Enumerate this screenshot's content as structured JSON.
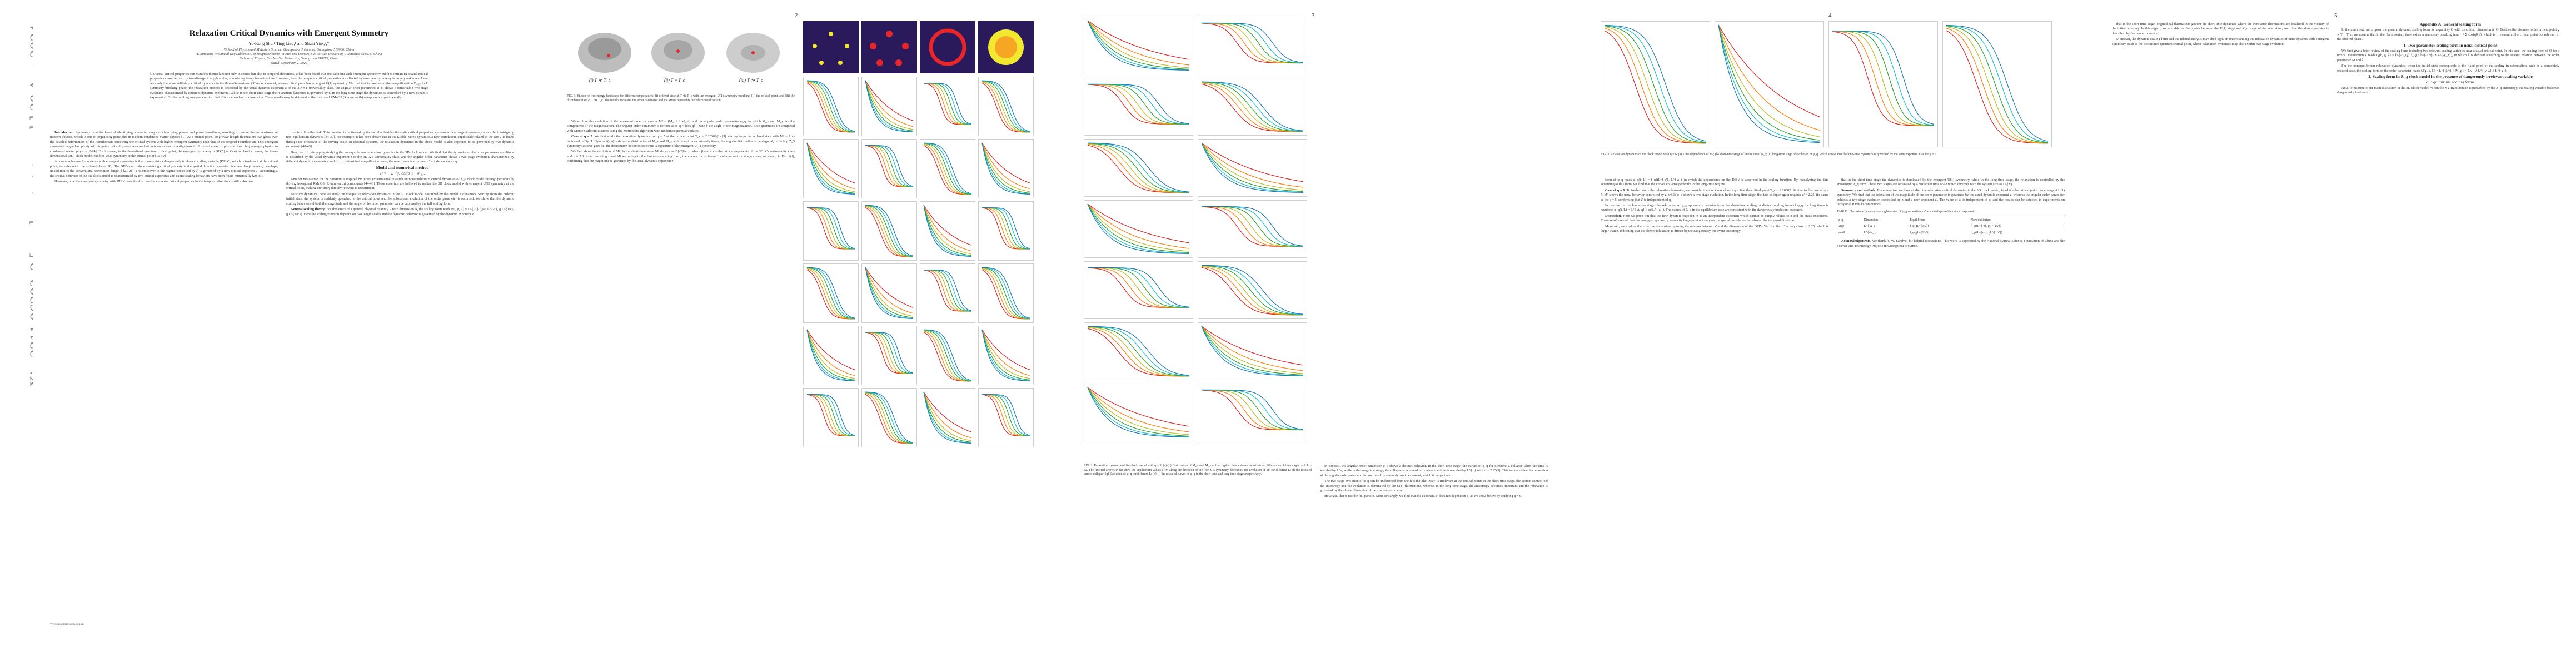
{
  "arxiv_stamp": "arXiv:2311.06203v2  [cond-mat.stat-mech]  30 Aug 2024",
  "page_numbers": [
    "2",
    "3",
    "4",
    "5"
  ],
  "header": {
    "title": "Relaxation Critical Dynamics with Emergent Symmetry",
    "authors": "Yu-Rong Shu,¹ Ting Liao,¹ and Shuai Yin²,³,*",
    "affiliations": [
      "¹School of Physics and Materials Science, Guangzhou University, Guangzhou 510006, China",
      "²Guangdong Provincial Key Laboratory of Magnetoelectric Physics and Devices, Sun Yat-sen University, Guangzhou 510275, China",
      "³School of Physics, Sun Yat-Sen University, Guangzhou 510275, China"
    ],
    "date": "(Dated: September 2, 2024)"
  },
  "abstract": "Universal critical properties can manifest themselves not only in spatial but also in temporal directions. It has been found that critical point with emergent symmetry exhibits intriguing spatial critical properties characterized by two divergent length scales, stimulating heavy investigations. However, how the temporal critical properties are affected by emergent symmetry is largely unknown. Here we study the nonequilibrium critical dynamics in the three-dimensional (3D) clock model, whose critical point has emergent U(1) symmetry. We find that in contrast to the unequilibration Z_q clock symmetry breaking phase, the relaxation process is described by the usual dynamic exponent z of the 3D XY universality class, the angular order parameter, φ_q, shows a remarkable two-stage evolution characterized by different dynamic exponents. While in the short-time stage the relaxation dynamics is governed by z, in the long-time stage the dynamics is controlled by a new dynamic exponent z'. Further scaling analyses confirm that z' is independent of dimension. These results may be detected in the frustrated RMnO3 (R=rare earth) compounds experimentally.",
  "page1": {
    "col_left": [
      {
        "head": "Introduction",
        "text": "Symmetry is at the heart of identifying, characterizing and classifying phases and phase transitions, resulting in one of the cornerstones of modern physics, which is one of organizing principles in modern condensed matter physics [1]. At a critical point, long wave-length fluctuations can gloss over the detailed deformation of the Hamiltonian, endowing the critical system with higher emergent symmetry than that of the original Hamiltonian. This emergent symmetry engenders plenty of intriguing critical phenomena and attracts enormous investigations in different areas of physics, from high-energy physics to condensed matter physics [2-14]. For instance, in the deconfined quantum critical point, the emergent symmetry is SO(5) or O(4) in classical cases, the three-dimensional (3D) clock model exhibits U(1) symmetry at the critical point [15-19]."
      },
      {
        "head": "",
        "text": "A common feature for systems with emergent symmetry is that there exists a dangerously irrelevant scaling variable (DISV), which is irrelevant at the critical point, but relevant in the ordered phase [20]. The DISV can induce a striking critical property in the spatial direction: an extra divergent length scale ξ' develops, in addition to the conventional correlation length ξ [21-28]. The crossover to the regime controlled by ξ' is governed by a new critical exponent ν'. Accordingly, the critical behavior of the 3D clock model is characterized by two critical exponents and exotic scaling behaviors have been found numerically [29-33]."
      },
      {
        "head": "",
        "text": "However, how the emergent symmetry with DISV casts its effect on the universal critical properties in the temporal direction is still unknown."
      }
    ],
    "col_right": [
      {
        "head": "",
        "text": "tion is still in the dark. This question is motivated by the fact that besides the static critical properties, systems with emergent symmetry also exhibit intriguing non-equilibrium dynamics [34-39]. For example, it has been shown that in the Kibble-Zurek dynamics a new correlation length scale related to the DISV is found through the crossover of the driving scale. In classical systems, the relaxation dynamics in the clock model is also expected to be governed by two dynamic exponents [40-43]."
      },
      {
        "head": "",
        "text": "Here, we fill this gap by studying the nonequilibrium relaxation dynamics in the 3D clock model. We find that the dynamics of the order parameter amplitude is described by the usual dynamic exponent z of the 3D XY universality class, and the angular order parameter shows a two-stage evolution characterized by different dynamic exponents z and z'. In contrast to the equilibrium case, the new dynamic exponent z' is independent of q."
      },
      {
        "head": "",
        "text": "Another motivation for the question is inspired by recent experimental research on nonequilibrium critical dynamics of Z_6 clock model through periodically driving hexagonal RMnO3 (R=rare earth) compounds [44-46]. These materials are believed to realize the 3D clock model with emergent U(1) symmetry at the critical point, making our study directly relevant to experiment."
      },
      {
        "head": "",
        "text": "To study dynamics, here we study the dissipative relaxation dynamics in the 3D clock model described by the model A dynamics. Starting from the ordered initial state, the system is suddenly quenched to the critical point and the subsequent evolution of the order parameter is recorded. We show that the dynamic scaling behaviors of both the magnitude and the angle of the order parameter can be captured by the full scaling form."
      },
      {
        "head": "General scaling theory",
        "text": "For dynamics of a general physical quantity P with dimension Δ, the scaling form reads P(t, g, L) = L^{-Δ} f_P(t L^{-z}, g L^{1/ν}, g L^{1/ν'}). Here the scaling function depends on two length scales and the dynamic behavior is governed by the dynamic exponent z."
      }
    ],
    "model_head": "Model and numerical method",
    "equation": "H = − Σ_⟨ij⟩ cos(θ_i − θ_j),",
    "footnote": "* yinsh6@mail.sysu.edu.cn"
  },
  "page2": {
    "fig1_labels": [
      "(i) T ≪ T_c",
      "(ii) T = T_c",
      "(iii) T ≫ T_c"
    ],
    "fig1_caption": "FIG. 1. Sketch of free energy landscape for different temperatures: (i) ordered state at T ≪ T_c with the emergent U(1) symmetry breaking, (ii) the critical point, and (iii) the disordered state at T ≫ T_c. The red dot indicates the order parameter and the arrow represents the relaxation direction.",
    "col_left": [
      {
        "head": "",
        "text": "We explore the evolution of the square of order parameter M² = ⟨M_x² + M_y²⟩ and the angular order parameter φ_q, in which M_x and M_y are the components of the magnetization. The angular order parameter is defined as φ_q = ⟨cos(qθ)⟩ with θ the angle of the magnetization. Both quantities are computed with Monte Carlo simulations using the Metropolis algorithm with random sequential updates."
      },
      {
        "head": "Case of q = 5",
        "text": "We first study the relaxation dynamics for q = 5 at the critical point T_c = 2.20502(1) [9] starting from the ordered state with M² = 1 as indicated in Fig. 1. Figures 2(a)-(d) show the distribution of M_x and M_y at different times. At early times, the angular distribution is pentagonal, reflecting Z_5 symmetry; as time goes on, the distribution becomes isotropic, a signature of the emergent U(1) symmetry."
      },
      {
        "head": "",
        "text": "We first show the evolution of M². In the short-time stage M² decays as t^{-2β/νz}, where β and ν are the critical exponents of the 3D XY universality class and z ≈ 2.0. After rescaling t and M² according to the finite-size scaling form, the curves for different L collapse onto a single curve, as shown in Fig. 2(f), confirming that the magnitude is governed by the usual dynamic exponent z."
      }
    ],
    "col_right": [
      {
        "head": "",
        "text": "In contrast, the angular order parameter φ_q shows a distinct behavior. In the short-time stage, the curves of φ_q for different L collapse when the time is rescaled by L^z, while in the long-time stage, the collapse is achieved only when the time is rescaled by L^{z'} with z' = 2.25(5). This indicates that the relaxation of the angular order parameter is controlled by a new dynamic exponent, which is larger than z."
      },
      {
        "head": "",
        "text": "The two-stage evolution of φ_q can be understood from the fact that the DISV is irrelevant at the critical point: in the short-time stage, the system cannot feel the anisotropy and the evolution is dominated by the U(1) fluctuations, whereas in the long-time stage, the anisotropy becomes important and the relaxation is governed by the slower dynamics of the discrete symmetry."
      },
      {
        "head": "",
        "text": "However, that is not the full picture. More strikingly, we find that the exponent z' does not depend on q, as we show below by studying q = 6."
      }
    ],
    "fig2_caption": "FIG. 2. Relaxation dynamics of the clock model with q = 5. (a)-(d) Distribution of M_x and M_y at four typical time values characterizing different evolution stages with L = 32. The five red arrows in (a) show the equilibrium values of M along the direction of the five Z_5 symmetry directions. (e) Evolution of M² for different L; (f) the rescaled curves collapse. (g) Evolution of φ_q for different L; (h)-(i) the rescaled curves of φ_q in the short-time and long-time stages respectively."
  },
  "page3": {
    "fig3_caption": "FIG. 3. Relaxation dynamics of the clock model with q = 6. (a) Time dependence of M²; (b) short-time stage of evolution of φ_q; (c) long-time stage of evolution of φ_q, which shows that the long-time dynamics is governed by the same exponent z' as for q = 5.",
    "col_left": [
      {
        "head": "",
        "text": "form of φ_q reads φ_q(t, L) = f_φ(tL^{-z'}, L^{-a}), in which the dependence on the DISV is absorbed in the scaling function. By reanalyzing the data according to this form, we find that the curves collapse perfectly in the long-time regime."
      },
      {
        "head": "Case of q = 6",
        "text": "To further study the relaxation dynamics, we consider the clock model with q = 6 at the critical point T_c = 2.20502. Similar to the case of q = 5, M² shows the usual behavior controlled by z, while φ_q shows a two-stage evolution. In the long-time stage, the data collapse again requires z' = 2.25, the same as for q = 5, confirming that z' is independent of q."
      },
      {
        "head": "",
        "text": "In contrast, in the long-time stage, the relaxation of φ_q apparently deviates from the short-time scaling. A distinct scaling form of φ_q for long times is required: φ_q(t, L) = L^{-Δ_q} f_q(tL^{-z'}). The values of Δ_q in the equilibrium case are consistent with the dangerously irrelevant exponent."
      },
      {
        "head": "Discussion",
        "text": "Here we point out that the new dynamic exponent z' is an independent exponent which cannot be simply related to z and the static exponents. These results reveal that the emergent symmetry leaves its fingerprint not only on the spatial correlation but also on the temporal direction."
      },
      {
        "head": "",
        "text": "Moreover, we explore the effective dimension by using the relation between z' and the dimension of the DISV. We find that z' is very close to 2.25, which is larger than z, indicating that the slower relaxation is driven by the dangerously irrelevant anisotropy."
      }
    ],
    "col_right": [
      {
        "head": "",
        "text": "that in the short-time stage the dynamics is dominated by the emergent U(1) symmetry, while in the long-time stage, the relaxation is controlled by the anisotropic Z_q term. These two stages are separated by a crossover time scale which diverges with the system size as L^{z'}."
      },
      {
        "head": "Summary and outlook",
        "text": "To summarize, we have studied the relaxation critical dynamics in the 3D clock model, in which the critical point has emergent U(1) symmetry. We find that the relaxation of the magnitude of the order parameter is governed by the usual dynamic exponent z, whereas the angular order parameter exhibits a two-stage evolution controlled by z and a new exponent z'. The value of z' is independent of q, and the results can be detected in experiments on hexagonal RMnO3 compounds."
      },
      {
        "head": "Acknowledgements",
        "text": "We thank A. W. Sandvik for helpful discussions. This work is supported by the National Natural Science Foundation of China and the Science and Technology Projects in Guangzhou Province."
      }
    ],
    "table_caption": "TABLE I. Two-stage dynamic scaling behavior of φ_q necessitates z' as an indispensable critical exponent.",
    "table_headers": [
      "φ_q",
      "Dimension",
      "Equilibrium",
      "Nonequilibrium"
    ],
    "table_rows": [
      [
        "large",
        "L^{-Δ_q}",
        "f_φ(gL^{1/ν})",
        "f_φ(tL^{-z}, gL^{1/ν})"
      ],
      [
        "small",
        "L^{-Δ_q}",
        "f_φ(gL^{1/ν'})",
        "f_φ(tL^{-z'}, gL^{1/ν'})"
      ]
    ]
  },
  "page4": {
    "appendix_title": "Appendix A: General scaling form",
    "col_left": [
      {
        "head": "",
        "text": "that in the short-time stage longitudinal fluctuations govern the short-time dynamics where the transverse fluctuations are localized in the vicinity of the initial ordering. In this regard, we are able to distinguish between the U(1) stage and Z_q stage of the relaxation, such that the slow dynamics is described by the new exponent z'."
      },
      {
        "head": "",
        "text": "Moreover, the dynamic scaling form and the related analysis may shed light on understanding the relaxation dynamics of other systems with emergent symmetry, such as the deconfined quantum critical point, whose relaxation dynamics may also exhibit two-stage evolution."
      }
    ],
    "col_right": [
      {
        "head": "",
        "text": "In the main text, we propose the general dynamic scaling form for a quantity Q with its critical dimension Δ_Q. Besides the distance to the critical point g ∝ T − T_c, we assume that in the Hamiltonian, there exists a symmetry breaking term −λ Σ cos(qθ_i), which is irrelevant at the critical point but relevant in the ordered phase."
      },
      {
        "head": "1. Two-parameter scaling form in usual critical point",
        "text": "We first give a brief review of the scaling form including two relevant scaling variables near a usual critical point. In this case, the scaling form of Q for a typical momentum k reads Q(k, g, λ) = k^{-Δ_Q} f_Q(g k^{-1/ν}, λ k^{-y_λ}), in which λ is defined according to the scaling relation between the order parameter M and λ."
      },
      {
        "head": "",
        "text": "For the nonequilibrium relaxation dynamics, when the initial state corresponds to the fixed point of the scaling transformation, such as a completely ordered state, the scaling form of the order parameter reads M(g, k, L) = L^{-β/ν} f_M(g L^{1/ν}, λ L^{-y_λ}, t L^{-z})."
      },
      {
        "head": "2. Scaling form in Z_q clock model in the presence of dangerously irrelevant scaling variable",
        "text": "Now, let us turn to our main discussion in the 3D clock model. When the XY Hamiltonian is perturbed by the Z_q anisotropy, the scaling variable becomes dangerously irrelevant."
      }
    ],
    "subsection": "a. Equilibrium scaling forms"
  },
  "colors": {
    "accent_red": "#e8262a",
    "dark_panel": "#2a1a5c",
    "heat_yellow": "#f2e830"
  }
}
